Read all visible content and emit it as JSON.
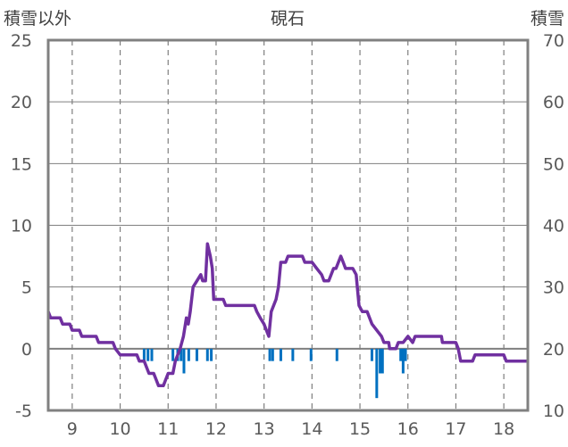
{
  "chart_data": {
    "type": "line",
    "title": "硯石",
    "left_axis_label": "積雪以外",
    "right_axis_label": "積雪",
    "x_ticks": [
      "9",
      "10",
      "11",
      "12",
      "13",
      "14",
      "15",
      "16",
      "17",
      "18"
    ],
    "y_left": {
      "min": -5,
      "max": 25,
      "ticks": [
        -5,
        0,
        5,
        10,
        15,
        20,
        25
      ]
    },
    "y_right": {
      "min": 10,
      "max": 70,
      "ticks": [
        10,
        20,
        30,
        40,
        50,
        60,
        70
      ]
    },
    "x_range": [
      8.5,
      18.5
    ],
    "grid": true,
    "colors": {
      "line": "#7030a0",
      "bars": "#0070c0",
      "frame": "#808080",
      "grid": "#7f7f7f",
      "zero": "#7f7f7f"
    },
    "series": [
      {
        "axis": "left",
        "points": [
          [
            8.5,
            3.0
          ],
          [
            8.55,
            2.5
          ],
          [
            8.75,
            2.5
          ],
          [
            8.8,
            2.0
          ],
          [
            8.95,
            2.0
          ],
          [
            9.0,
            1.5
          ],
          [
            9.15,
            1.5
          ],
          [
            9.2,
            1.0
          ],
          [
            9.5,
            1.0
          ],
          [
            9.55,
            0.5
          ],
          [
            9.85,
            0.5
          ],
          [
            9.9,
            0.0
          ],
          [
            10.0,
            -0.5
          ],
          [
            10.35,
            -0.5
          ],
          [
            10.4,
            -1.0
          ],
          [
            10.5,
            -1.0
          ],
          [
            10.55,
            -1.5
          ],
          [
            10.6,
            -2.0
          ],
          [
            10.7,
            -2.0
          ],
          [
            10.75,
            -2.5
          ],
          [
            10.8,
            -3.0
          ],
          [
            10.9,
            -3.0
          ],
          [
            10.95,
            -2.5
          ],
          [
            11.0,
            -2.0
          ],
          [
            11.1,
            -2.0
          ],
          [
            11.15,
            -1.0
          ],
          [
            11.25,
            0.0
          ],
          [
            11.32,
            1.0
          ],
          [
            11.38,
            2.5
          ],
          [
            11.42,
            2.0
          ],
          [
            11.46,
            3.0
          ],
          [
            11.52,
            5.0
          ],
          [
            11.6,
            5.5
          ],
          [
            11.68,
            6.0
          ],
          [
            11.72,
            5.5
          ],
          [
            11.78,
            5.5
          ],
          [
            11.82,
            8.5
          ],
          [
            11.88,
            7.5
          ],
          [
            11.92,
            6.5
          ],
          [
            11.95,
            4.0
          ],
          [
            12.15,
            4.0
          ],
          [
            12.2,
            3.5
          ],
          [
            12.8,
            3.5
          ],
          [
            12.85,
            3.0
          ],
          [
            12.92,
            2.5
          ],
          [
            13.0,
            2.0
          ],
          [
            13.05,
            1.5
          ],
          [
            13.1,
            1.0
          ],
          [
            13.15,
            3.0
          ],
          [
            13.25,
            4.0
          ],
          [
            13.3,
            5.0
          ],
          [
            13.35,
            7.0
          ],
          [
            13.45,
            7.0
          ],
          [
            13.5,
            7.5
          ],
          [
            13.8,
            7.5
          ],
          [
            13.85,
            7.0
          ],
          [
            14.0,
            7.0
          ],
          [
            14.1,
            6.5
          ],
          [
            14.2,
            6.0
          ],
          [
            14.25,
            5.5
          ],
          [
            14.35,
            5.5
          ],
          [
            14.45,
            6.5
          ],
          [
            14.5,
            6.5
          ],
          [
            14.6,
            7.5
          ],
          [
            14.65,
            7.0
          ],
          [
            14.7,
            6.5
          ],
          [
            14.85,
            6.5
          ],
          [
            14.92,
            6.0
          ],
          [
            14.98,
            3.5
          ],
          [
            15.05,
            3.0
          ],
          [
            15.15,
            3.0
          ],
          [
            15.25,
            2.0
          ],
          [
            15.35,
            1.5
          ],
          [
            15.45,
            1.0
          ],
          [
            15.5,
            0.5
          ],
          [
            15.6,
            0.5
          ],
          [
            15.62,
            0.0
          ],
          [
            15.75,
            0.0
          ],
          [
            15.8,
            0.5
          ],
          [
            15.9,
            0.5
          ],
          [
            16.0,
            1.0
          ],
          [
            16.1,
            0.5
          ],
          [
            16.15,
            1.0
          ],
          [
            16.7,
            1.0
          ],
          [
            16.72,
            0.5
          ],
          [
            17.0,
            0.5
          ],
          [
            17.05,
            0.0
          ],
          [
            17.1,
            -1.0
          ],
          [
            17.35,
            -1.0
          ],
          [
            17.4,
            -0.5
          ],
          [
            18.0,
            -0.5
          ],
          [
            18.05,
            -1.0
          ],
          [
            18.5,
            -1.0
          ]
        ]
      }
    ],
    "bars": [
      [
        10.5,
        -1.0
      ],
      [
        10.58,
        -1.0
      ],
      [
        10.66,
        -1.0
      ],
      [
        11.1,
        -1.0
      ],
      [
        11.2,
        -1.0
      ],
      [
        11.27,
        -1.0
      ],
      [
        11.33,
        -2.0
      ],
      [
        11.43,
        -1.0
      ],
      [
        11.6,
        -1.0
      ],
      [
        11.82,
        -1.0
      ],
      [
        11.9,
        -1.0
      ],
      [
        13.12,
        -1.0
      ],
      [
        13.18,
        -1.0
      ],
      [
        13.35,
        -1.0
      ],
      [
        13.6,
        -1.0
      ],
      [
        13.98,
        -1.0
      ],
      [
        14.52,
        -1.0
      ],
      [
        15.25,
        -1.0
      ],
      [
        15.35,
        -4.0
      ],
      [
        15.42,
        -2.0
      ],
      [
        15.47,
        -2.0
      ],
      [
        15.85,
        -1.0
      ],
      [
        15.9,
        -2.0
      ],
      [
        15.95,
        -1.0
      ]
    ]
  }
}
